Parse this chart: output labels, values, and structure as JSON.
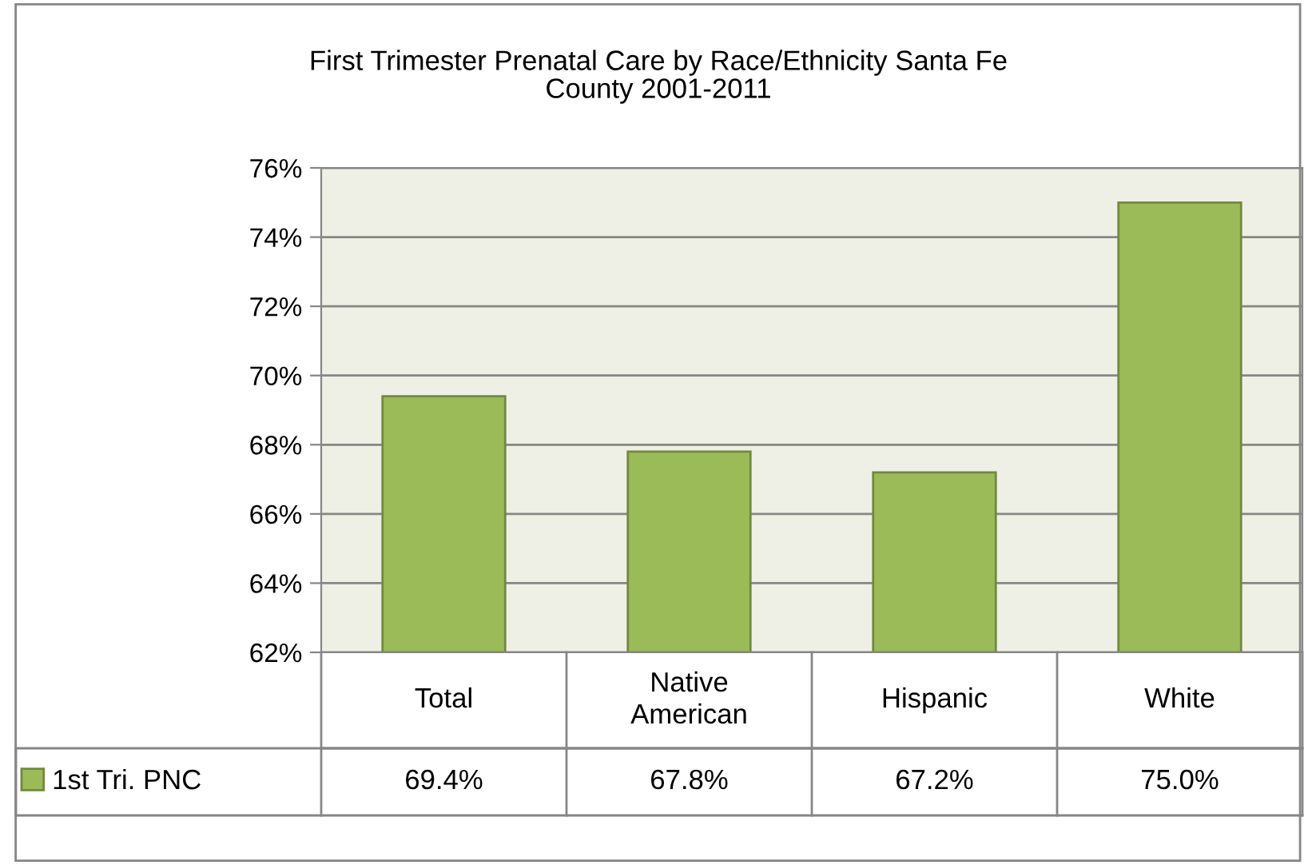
{
  "chart_data": {
    "type": "bar",
    "title": "First Trimester Prenatal Care by Race/Ethnicity Santa Fe County 2001-2011",
    "categories": [
      "Total",
      "Native\nAmerican",
      "Hispanic",
      "White"
    ],
    "series": [
      {
        "name": "1st Tri. PNC",
        "color": "#9bbb59",
        "values": [
          69.4,
          67.8,
          67.2,
          75.0
        ],
        "value_labels": [
          "69.4%",
          "67.8%",
          "67.2%",
          "75.0%"
        ]
      }
    ],
    "ylim": [
      62,
      76
    ],
    "yticks": [
      {
        "value": 62,
        "label": "62%"
      },
      {
        "value": 64,
        "label": "64%"
      },
      {
        "value": 66,
        "label": "66%"
      },
      {
        "value": 68,
        "label": "68%"
      },
      {
        "value": 70,
        "label": "70%"
      },
      {
        "value": 72,
        "label": "72%"
      },
      {
        "value": 74,
        "label": "74%"
      },
      {
        "value": 76,
        "label": "76%"
      }
    ],
    "grid": "y",
    "legend": "bottom"
  }
}
